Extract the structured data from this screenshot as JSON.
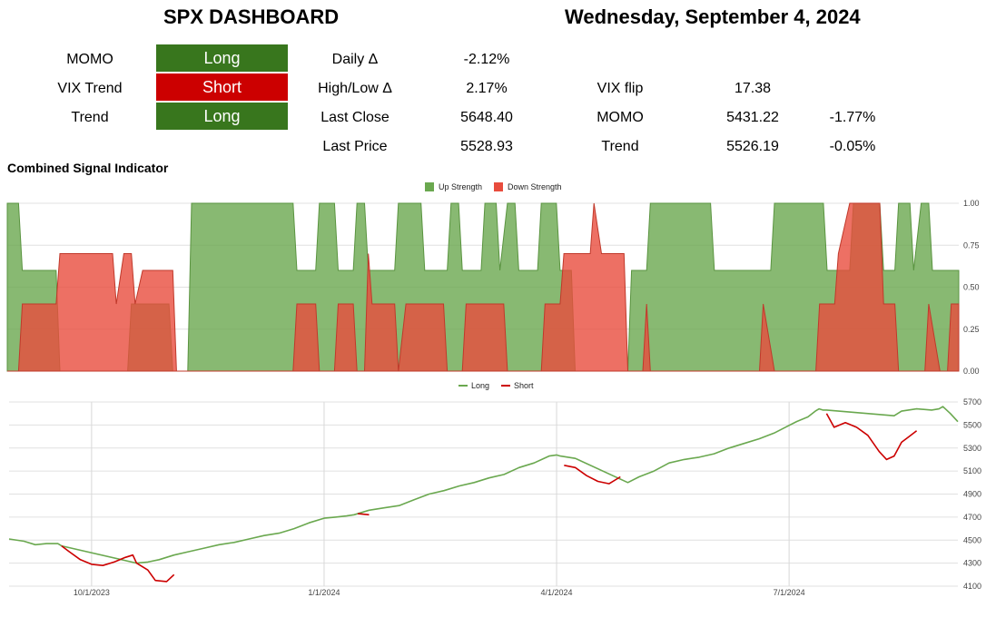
{
  "dashboard": {
    "title": "SPX DASHBOARD",
    "date": "Wednesday, September 4, 2024",
    "signals": [
      {
        "label": "MOMO",
        "value": "Long",
        "color": "#38761d"
      },
      {
        "label": "VIX Trend",
        "value": "Short",
        "color": "#cc0000"
      },
      {
        "label": "Trend",
        "value": "Long",
        "color": "#38761d"
      }
    ],
    "stats": [
      {
        "label": "Daily Δ",
        "value": "-2.12%"
      },
      {
        "label": "High/Low Δ",
        "value": "2.17%"
      },
      {
        "label": "Last Close",
        "value": "5648.40"
      },
      {
        "label": "Last Price",
        "value": "5528.93"
      }
    ],
    "levels": [
      {
        "label": "VIX flip",
        "value": "17.38",
        "pct": ""
      },
      {
        "label": "MOMO",
        "value": "5431.22",
        "pct": "-1.77%"
      },
      {
        "label": "Trend",
        "value": "5526.19",
        "pct": "-0.05%"
      }
    ],
    "section_title": "Combined Signal Indicator"
  },
  "chart_data": [
    {
      "type": "area",
      "title": "",
      "legend": [
        "Up Strength",
        "Down Strength"
      ],
      "legend_position": "top",
      "colors": {
        "up": "#6aa84f",
        "down": "#e84c3d"
      },
      "ylim": [
        0,
        1
      ],
      "yticks": [
        "1.00",
        "0.75",
        "0.50",
        "0.25",
        "0.00"
      ],
      "grid": true,
      "x_index_range": [
        0,
        253
      ],
      "series": [
        {
          "name": "Up Strength",
          "points": [
            [
              0,
              1
            ],
            [
              3,
              1
            ],
            [
              4,
              0.6
            ],
            [
              13,
              0.6
            ],
            [
              14,
              0
            ],
            [
              32,
              0
            ],
            [
              33,
              0.4
            ],
            [
              43,
              0.4
            ],
            [
              44,
              0
            ],
            [
              48,
              0
            ],
            [
              49,
              1
            ],
            [
              76,
              1
            ],
            [
              77,
              0.6
            ],
            [
              82,
              0.6
            ],
            [
              83,
              1
            ],
            [
              87,
              1
            ],
            [
              88,
              0.6
            ],
            [
              92,
              0.6
            ],
            [
              93,
              1
            ],
            [
              95,
              1
            ],
            [
              96,
              0.6
            ],
            [
              103,
              0.6
            ],
            [
              104,
              1
            ],
            [
              110,
              1
            ],
            [
              111,
              0.6
            ],
            [
              117,
              0.6
            ],
            [
              118,
              1
            ],
            [
              120,
              1
            ],
            [
              121,
              0.6
            ],
            [
              126,
              0.6
            ],
            [
              127,
              1
            ],
            [
              130,
              1
            ],
            [
              131,
              0.6
            ],
            [
              133,
              1
            ],
            [
              135,
              1
            ],
            [
              136,
              0.6
            ],
            [
              141,
              0.6
            ],
            [
              142,
              1
            ],
            [
              146,
              1
            ],
            [
              147,
              0.6
            ],
            [
              150,
              0.6
            ],
            [
              151,
              0
            ],
            [
              165,
              0
            ],
            [
              166,
              0.6
            ],
            [
              170,
              0.6
            ],
            [
              171,
              1
            ],
            [
              187,
              1
            ],
            [
              188,
              0.6
            ],
            [
              203,
              0.6
            ],
            [
              204,
              1
            ],
            [
              217,
              1
            ],
            [
              218,
              0.6
            ],
            [
              224,
              0.6
            ],
            [
              225,
              1
            ],
            [
              232,
              1
            ],
            [
              233,
              0.6
            ],
            [
              236,
              0.6
            ],
            [
              237,
              1
            ],
            [
              240,
              1
            ],
            [
              241,
              0.6
            ],
            [
              243,
              1
            ],
            [
              245,
              1
            ],
            [
              246,
              0.6
            ],
            [
              249,
              0.6
            ],
            [
              253,
              0.6
            ]
          ]
        },
        {
          "name": "Down Strength",
          "points": [
            [
              0,
              0
            ],
            [
              3,
              0
            ],
            [
              4,
              0.4
            ],
            [
              13,
              0.4
            ],
            [
              14,
              0.7
            ],
            [
              28,
              0.7
            ],
            [
              29,
              0.4
            ],
            [
              31,
              0.7
            ],
            [
              33,
              0.7
            ],
            [
              34,
              0.4
            ],
            [
              36,
              0.6
            ],
            [
              44,
              0.6
            ],
            [
              45,
              0
            ],
            [
              76,
              0
            ],
            [
              77,
              0.4
            ],
            [
              82,
              0.4
            ],
            [
              83,
              0
            ],
            [
              87,
              0
            ],
            [
              88,
              0.4
            ],
            [
              92,
              0.4
            ],
            [
              93,
              0
            ],
            [
              95,
              0
            ],
            [
              96,
              0.7
            ],
            [
              97,
              0.4
            ],
            [
              103,
              0.4
            ],
            [
              104,
              0
            ],
            [
              106,
              0.4
            ],
            [
              116,
              0.4
            ],
            [
              117,
              0
            ],
            [
              121,
              0
            ],
            [
              122,
              0.4
            ],
            [
              132,
              0.4
            ],
            [
              133,
              0
            ],
            [
              142,
              0
            ],
            [
              143,
              0.4
            ],
            [
              147,
              0.4
            ],
            [
              148,
              0.7
            ],
            [
              155,
              0.7
            ],
            [
              156,
              1
            ],
            [
              158,
              0.7
            ],
            [
              164,
              0.7
            ],
            [
              165,
              0
            ],
            [
              169,
              0
            ],
            [
              170,
              0.4
            ],
            [
              171,
              0
            ],
            [
              200,
              0
            ],
            [
              201,
              0.4
            ],
            [
              204,
              0
            ],
            [
              215,
              0
            ],
            [
              216,
              0.4
            ],
            [
              220,
              0.4
            ],
            [
              221,
              0.7
            ],
            [
              224,
              1
            ],
            [
              232,
              1
            ],
            [
              233,
              0.4
            ],
            [
              236,
              0.4
            ],
            [
              237,
              0
            ],
            [
              244,
              0
            ],
            [
              245,
              0.4
            ],
            [
              248,
              0
            ],
            [
              250,
              0
            ],
            [
              251,
              0.4
            ],
            [
              253,
              0.4
            ]
          ]
        }
      ]
    },
    {
      "type": "line",
      "title": "",
      "legend": [
        "Long",
        "Short"
      ],
      "legend_position": "top",
      "colors": {
        "long": "#6aa84f",
        "short": "#cc0000"
      },
      "ylim": [
        4100,
        5700
      ],
      "yticks": [
        "5700",
        "5500",
        "5300",
        "5100",
        "4900",
        "4700",
        "4500",
        "4300",
        "4100"
      ],
      "xticks": [
        {
          "label": "10/1/2023",
          "x": 22
        },
        {
          "label": "1/1/2024",
          "x": 84
        },
        {
          "label": "4/1/2024",
          "x": 146
        },
        {
          "label": "7/1/2024",
          "x": 208
        }
      ],
      "grid": true,
      "series": [
        {
          "name": "Long",
          "points": [
            [
              0,
              4510
            ],
            [
              4,
              4490
            ],
            [
              7,
              4460
            ],
            [
              10,
              4470
            ],
            [
              13,
              4470
            ],
            [
              14,
              4450
            ],
            [
              34,
              4300
            ],
            [
              37,
              4310
            ],
            [
              40,
              4330
            ],
            [
              44,
              4370
            ],
            [
              48,
              4400
            ],
            [
              52,
              4430
            ],
            [
              56,
              4460
            ],
            [
              60,
              4480
            ],
            [
              64,
              4510
            ],
            [
              68,
              4540
            ],
            [
              72,
              4560
            ],
            [
              76,
              4600
            ],
            [
              80,
              4650
            ],
            [
              84,
              4690
            ],
            [
              87,
              4700
            ],
            [
              90,
              4710
            ],
            [
              92,
              4720
            ],
            [
              96,
              4760
            ],
            [
              100,
              4780
            ],
            [
              104,
              4800
            ],
            [
              108,
              4850
            ],
            [
              112,
              4900
            ],
            [
              116,
              4930
            ],
            [
              120,
              4970
            ],
            [
              124,
              5000
            ],
            [
              128,
              5040
            ],
            [
              132,
              5070
            ],
            [
              136,
              5130
            ],
            [
              140,
              5170
            ],
            [
              144,
              5230
            ],
            [
              146,
              5240
            ],
            [
              147,
              5230
            ],
            [
              151,
              5210
            ],
            [
              165,
              5000
            ],
            [
              168,
              5050
            ],
            [
              172,
              5100
            ],
            [
              176,
              5170
            ],
            [
              180,
              5200
            ],
            [
              184,
              5220
            ],
            [
              188,
              5250
            ],
            [
              192,
              5300
            ],
            [
              196,
              5340
            ],
            [
              200,
              5380
            ],
            [
              204,
              5430
            ],
            [
              207,
              5480
            ],
            [
              210,
              5530
            ],
            [
              213,
              5570
            ],
            [
              215,
              5620
            ],
            [
              216,
              5640
            ],
            [
              217,
              5630
            ],
            [
              218,
              5630
            ],
            [
              236,
              5580
            ],
            [
              238,
              5620
            ],
            [
              242,
              5640
            ],
            [
              246,
              5630
            ],
            [
              248,
              5640
            ],
            [
              249,
              5660
            ],
            [
              251,
              5600
            ],
            [
              253,
              5529
            ]
          ]
        },
        {
          "name": "Short",
          "points": [
            [
              14,
              4450
            ],
            [
              16,
              4400
            ],
            [
              19,
              4330
            ],
            [
              22,
              4290
            ],
            [
              25,
              4280
            ],
            [
              28,
              4310
            ],
            [
              31,
              4350
            ],
            [
              33,
              4370
            ],
            [
              34,
              4300
            ],
            [
              37,
              4240
            ],
            [
              39,
              4150
            ],
            [
              42,
              4140
            ],
            [
              44,
              4200
            ],
            [
              93,
              4730
            ],
            [
              96,
              4720
            ],
            [
              148,
              5150
            ],
            [
              151,
              5130
            ],
            [
              154,
              5060
            ],
            [
              157,
              5010
            ],
            [
              160,
              4990
            ],
            [
              163,
              5050
            ],
            [
              218,
              5600
            ],
            [
              220,
              5480
            ],
            [
              223,
              5520
            ],
            [
              226,
              5480
            ],
            [
              229,
              5410
            ],
            [
              232,
              5270
            ],
            [
              234,
              5200
            ],
            [
              236,
              5230
            ],
            [
              238,
              5350
            ],
            [
              240,
              5400
            ],
            [
              242,
              5450
            ]
          ]
        }
      ]
    }
  ]
}
